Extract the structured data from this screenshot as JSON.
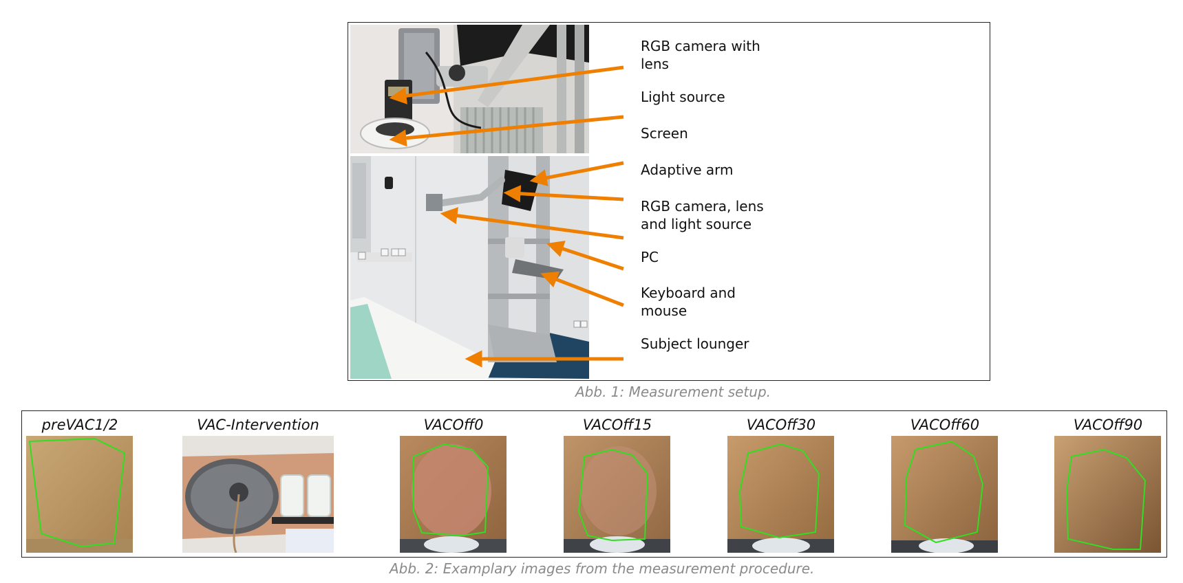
{
  "figure1": {
    "caption": "Abb. 1: Measurement setup.",
    "labels": [
      {
        "text": "RGB camera with\nlens"
      },
      {
        "text": "Light source"
      },
      {
        "text": "Screen"
      },
      {
        "text": "Adaptive arm"
      },
      {
        "text": "RGB camera, lens\nand light source"
      },
      {
        "text": "PC"
      },
      {
        "text": "Keyboard and\nmouse"
      },
      {
        "text": "Subject lounger"
      }
    ],
    "arrow_color": "#ef7f00"
  },
  "figure2": {
    "caption": "Abb. 2: Examplary images from the measurement procedure.",
    "panels": [
      {
        "title": "preVAC1/2"
      },
      {
        "title": "VAC-Intervention"
      },
      {
        "title": "VACOff0"
      },
      {
        "title": "VACOff15"
      },
      {
        "title": "VACOff30"
      },
      {
        "title": "VACOff60"
      },
      {
        "title": "VACOff90"
      }
    ],
    "roi_color": "#33dd22"
  }
}
